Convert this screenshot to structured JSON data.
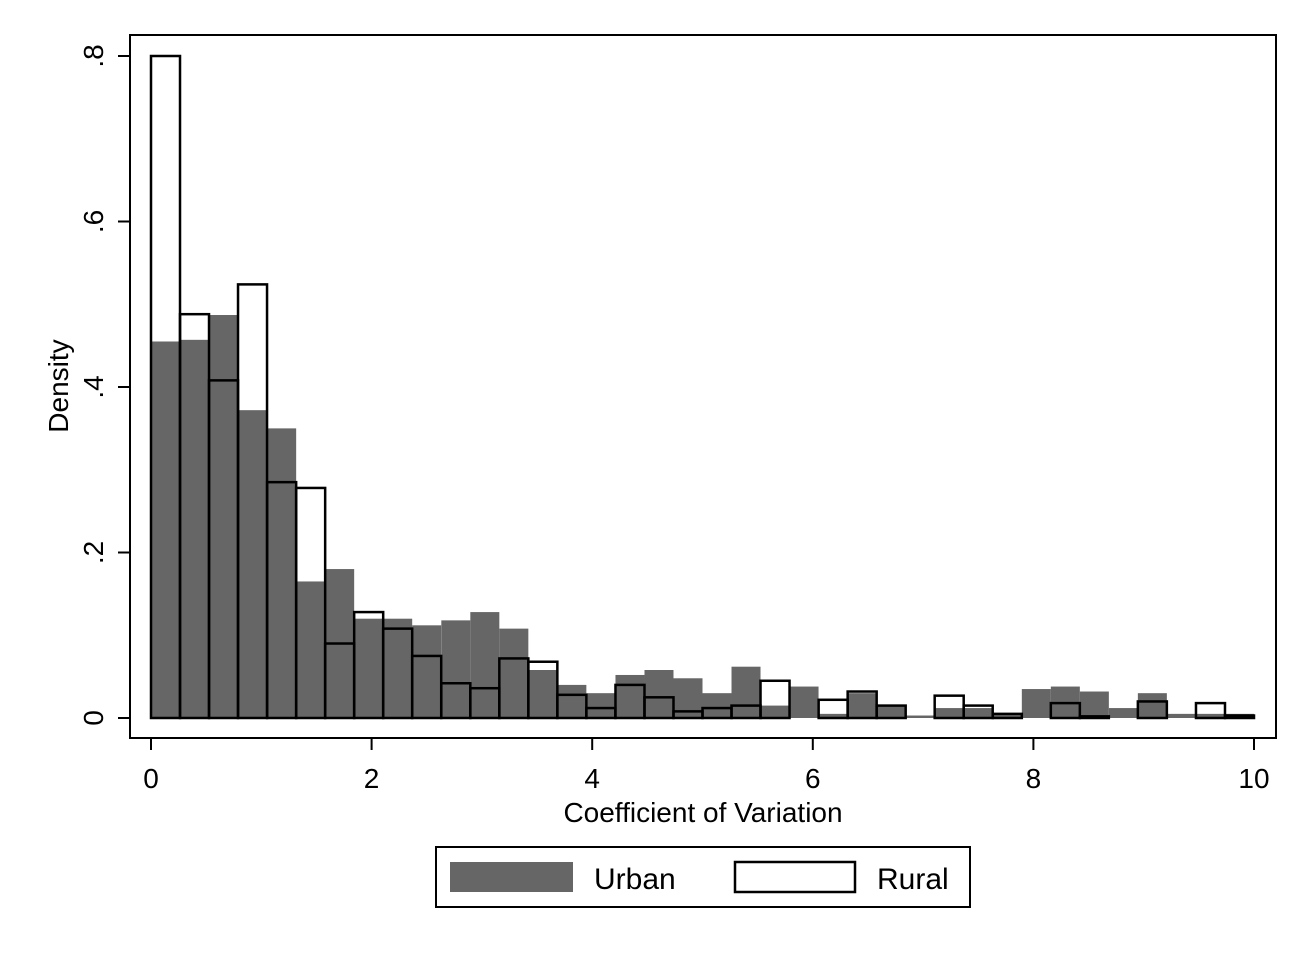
{
  "chart_data": {
    "type": "bar",
    "subtype": "overlaid-histogram",
    "xlabel": "Coefficient of Variation",
    "ylabel": "Density",
    "xlim": [
      0,
      10
    ],
    "ylim": [
      0,
      0.8
    ],
    "x_ticks": [
      0,
      2,
      4,
      6,
      8,
      10
    ],
    "x_tick_labels": [
      "0",
      "2",
      "4",
      "6",
      "8",
      "10"
    ],
    "y_ticks": [
      0,
      0.2,
      0.4,
      0.6,
      0.8
    ],
    "y_tick_labels": [
      "0",
      ".2",
      ".4",
      ".6",
      ".8"
    ],
    "grid": false,
    "legend_position": "bottom-center",
    "bin_width": 0.263,
    "bin_starts": [
      0,
      0.263,
      0.526,
      0.789,
      1.053,
      1.316,
      1.579,
      1.842,
      2.105,
      2.368,
      2.632,
      2.895,
      3.158,
      3.421,
      3.684,
      3.947,
      4.211,
      4.474,
      4.737,
      5.0,
      5.263,
      5.526,
      5.789,
      6.053,
      6.316,
      6.579,
      6.842,
      7.105,
      7.368,
      7.632,
      7.895,
      8.158,
      8.421,
      8.684,
      8.947,
      9.211,
      9.474,
      9.737
    ],
    "series": [
      {
        "name": "Urban",
        "style": "filled",
        "color": "#666666",
        "values": [
          0.455,
          0.457,
          0.487,
          0.372,
          0.35,
          0.165,
          0.18,
          0.12,
          0.12,
          0.112,
          0.118,
          0.128,
          0.108,
          0.058,
          0.04,
          0.03,
          0.052,
          0.058,
          0.048,
          0.03,
          0.062,
          0.015,
          0.038,
          0.005,
          0.03,
          0.015,
          0.003,
          0.012,
          0.012,
          0.005,
          0.035,
          0.038,
          0.032,
          0.012,
          0.03,
          0.005,
          0.005,
          0.005
        ]
      },
      {
        "name": "Rural",
        "style": "outline",
        "color": "#000000",
        "values": [
          0.8,
          0.488,
          0.408,
          0.524,
          0.285,
          0.278,
          0.09,
          0.128,
          0.108,
          0.075,
          0.042,
          0.036,
          0.072,
          0.068,
          0.028,
          0.012,
          0.04,
          0.025,
          0.008,
          0.012,
          0.015,
          0.045,
          0.0,
          0.022,
          0.032,
          0.015,
          0.0,
          0.027,
          0.015,
          0.005,
          0.0,
          0.018,
          0.002,
          0.0,
          0.02,
          0.0,
          0.018,
          0.003
        ]
      }
    ]
  },
  "legend": {
    "items": [
      {
        "label": "Urban",
        "style": "filled",
        "color": "#666666"
      },
      {
        "label": "Rural",
        "style": "outline",
        "color": "#000000"
      }
    ]
  }
}
